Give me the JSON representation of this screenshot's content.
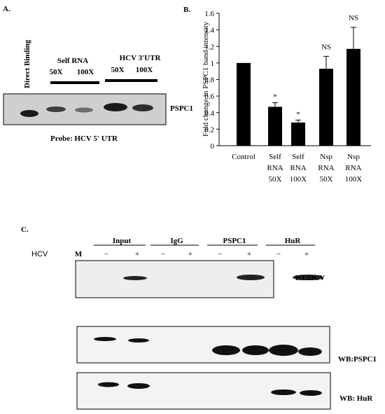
{
  "panel_a": {
    "label": "A.",
    "lane_header": "Direct Binding",
    "groups": [
      {
        "name": "Self RNA",
        "lanes": [
          "50X",
          "100X"
        ]
      },
      {
        "name": "HCV 3′UTR",
        "lanes": [
          "50X",
          "100X"
        ]
      }
    ],
    "blot_label": "PSPC1",
    "probe": "Probe: HCV 5′ UTR"
  },
  "chart_data": {
    "type": "bar",
    "panel_label": "B.",
    "ylabel": "Fold change in PSPC1 band intensity",
    "categories": [
      [
        "Control"
      ],
      [
        "Self",
        "RNA",
        "50X"
      ],
      [
        "Self",
        "RNA",
        "100X"
      ],
      [
        "Nsp",
        "RNA",
        "50X"
      ],
      [
        "Nsp",
        "RNA",
        "100X"
      ]
    ],
    "values": [
      1,
      0.47,
      0.28,
      0.93,
      1.17
    ],
    "errors": [
      null,
      0.05,
      0.03,
      0.15,
      0.26
    ],
    "annotations": [
      null,
      "*",
      "*",
      "NS",
      "NS"
    ],
    "color": "#000000",
    "ylim": [
      0,
      1.6
    ],
    "yticks": [
      0,
      0.2,
      0.4,
      0.6,
      0.8,
      1,
      1.2,
      1.4,
      1.6
    ]
  },
  "panel_c": {
    "label": "C.",
    "row_label": "HCV",
    "marker": "M",
    "groups": [
      {
        "name": "Input",
        "lanes": [
          "−",
          "+"
        ]
      },
      {
        "name": "IgG",
        "lanes": [
          "−",
          "+"
        ]
      },
      {
        "name": "PSPC1",
        "lanes": [
          "−",
          "+"
        ]
      },
      {
        "name": "HuR",
        "lanes": [
          "−",
          "+"
        ]
      }
    ],
    "blots": [
      "RT:HCV",
      "WB:PSPC1",
      "WB: HuR"
    ]
  }
}
